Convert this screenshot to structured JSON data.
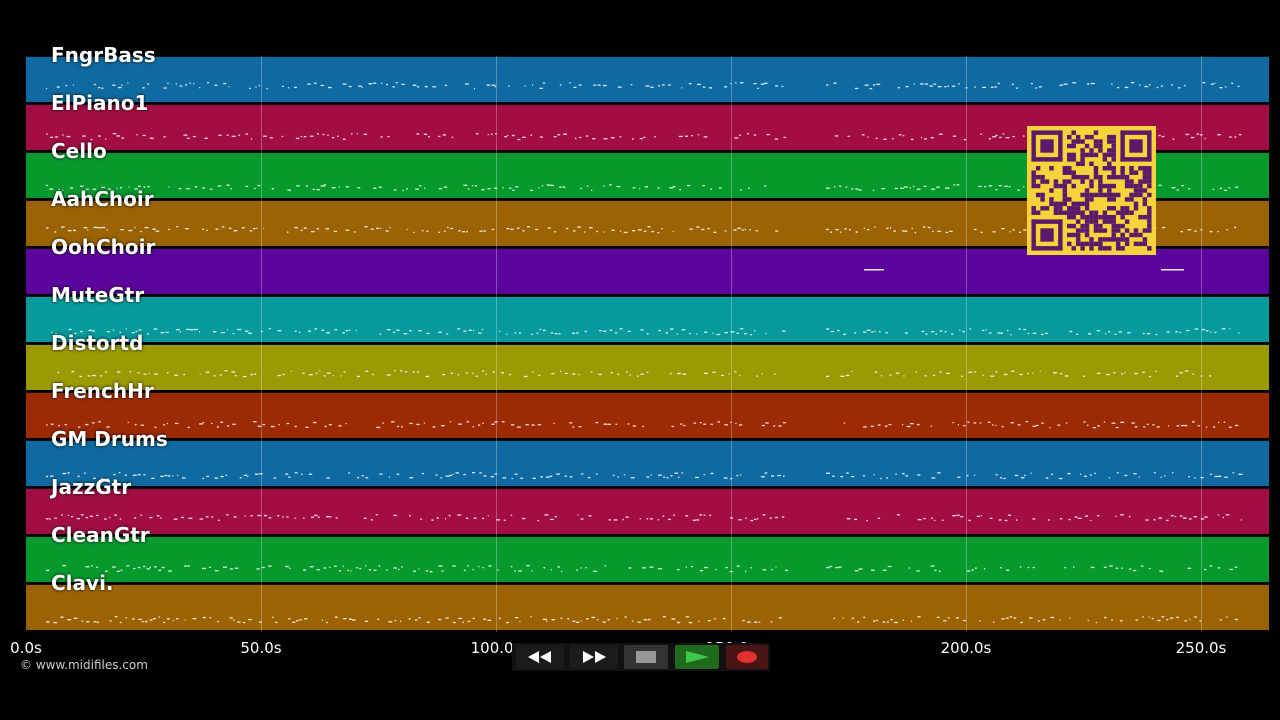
{
  "tracks": [
    {
      "name": "FngrBass",
      "color": "#0e6aa0"
    },
    {
      "name": "ElPiano1",
      "color": "#a30d45"
    },
    {
      "name": "Cello",
      "color": "#069a2d"
    },
    {
      "name": "AahChoir",
      "color": "#9c6304"
    },
    {
      "name": "OohChoir",
      "color": "#5c059d"
    },
    {
      "name": "MuteGtr",
      "color": "#069a9c"
    },
    {
      "name": "Distortd",
      "color": "#9c9a04"
    },
    {
      "name": "FrenchHr",
      "color": "#9c2a04"
    },
    {
      "name": "GM Drums",
      "color": "#0e6aa0"
    },
    {
      "name": "JazzGtr",
      "color": "#a30d45"
    },
    {
      "name": "CleanGtr",
      "color": "#069a2d"
    },
    {
      "name": "Clavi.",
      "color": "#9c6304"
    }
  ],
  "timeline": {
    "ticks": [
      "0.0s",
      "50.0s",
      "100.0s",
      "150.0s",
      "200.0s",
      "250.0s"
    ]
  },
  "copyright": "© www.midifiles.com",
  "transport": {
    "rewind": "rewind-icon",
    "forward": "fast-forward-icon",
    "stop": "stop-icon",
    "play": "play-icon",
    "record": "record-icon",
    "play_color": "#2ecc40",
    "record_color": "#e03030"
  },
  "qr_color": "#f6d33b"
}
